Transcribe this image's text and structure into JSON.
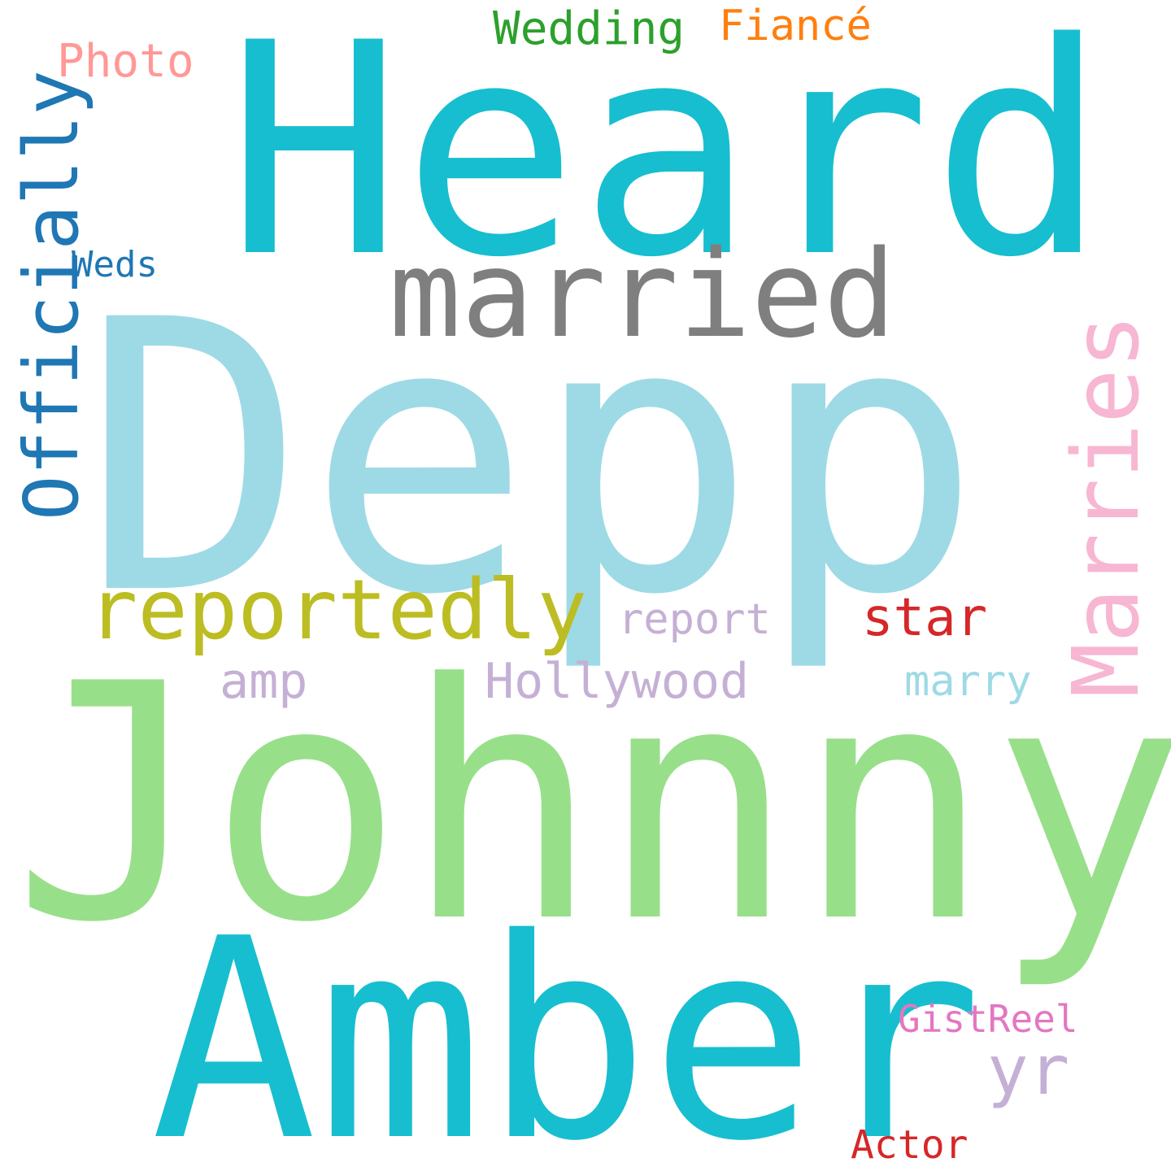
{
  "word_cloud": {
    "background": "#ffffff",
    "words": {
      "heard": {
        "text": "Heard",
        "color": "#17becf",
        "orientation": "horizontal"
      },
      "depp": {
        "text": "Depp",
        "color": "#9edae5",
        "orientation": "horizontal"
      },
      "johnny": {
        "text": "Johnny",
        "color": "#98df8a",
        "orientation": "horizontal"
      },
      "amber": {
        "text": "Amber",
        "color": "#17becf",
        "orientation": "horizontal"
      },
      "married": {
        "text": "married",
        "color": "#7f7f7f",
        "orientation": "horizontal"
      },
      "reportedly": {
        "text": "reportedly",
        "color": "#bcbd22",
        "orientation": "horizontal"
      },
      "marries": {
        "text": "Marries",
        "color": "#f7b6d2",
        "orientation": "vertical"
      },
      "officially": {
        "text": "Officially",
        "color": "#1f77b4",
        "orientation": "vertical"
      },
      "wedding": {
        "text": "Wedding",
        "color": "#2ca02c",
        "orientation": "horizontal"
      },
      "fiance": {
        "text": "Fiancé",
        "color": "#ff7f0e",
        "orientation": "horizontal"
      },
      "photo": {
        "text": "Photo",
        "color": "#ff9896",
        "orientation": "horizontal"
      },
      "weds": {
        "text": "Weds",
        "color": "#1f77b4",
        "orientation": "horizontal"
      },
      "star": {
        "text": "star",
        "color": "#d62728",
        "orientation": "horizontal"
      },
      "report": {
        "text": "report",
        "color": "#c5b0d5",
        "orientation": "horizontal"
      },
      "amp": {
        "text": "amp",
        "color": "#c5b0d5",
        "orientation": "horizontal"
      },
      "hollywood": {
        "text": "Hollywood",
        "color": "#c5b0d5",
        "orientation": "horizontal"
      },
      "marry": {
        "text": "marry",
        "color": "#9edae5",
        "orientation": "horizontal"
      },
      "gistreel": {
        "text": "GistReel",
        "color": "#e377c2",
        "orientation": "horizontal"
      },
      "yr": {
        "text": "yr",
        "color": "#c5b0d5",
        "orientation": "horizontal"
      },
      "actor": {
        "text": "Actor",
        "color": "#d62728",
        "orientation": "horizontal"
      }
    }
  }
}
